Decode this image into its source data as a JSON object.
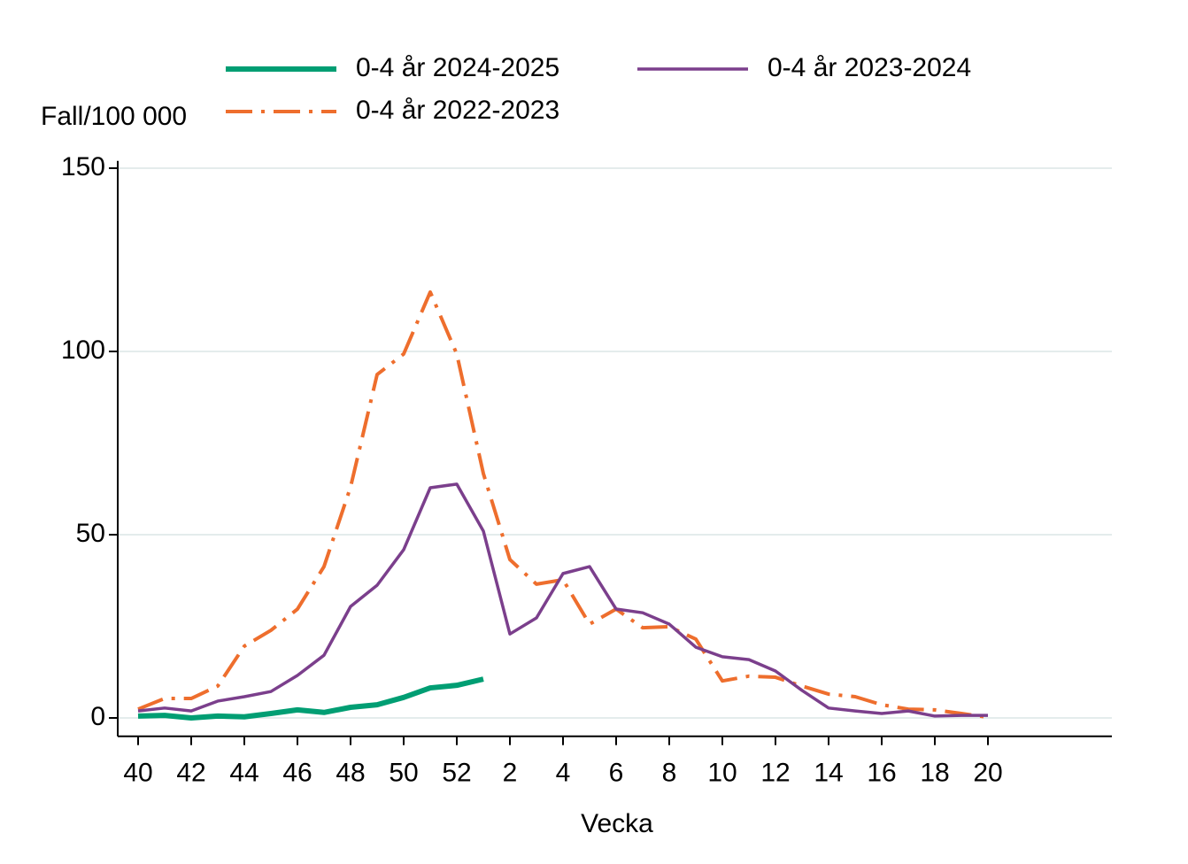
{
  "chart_data": {
    "type": "line",
    "ylabel": "Fall/100 000",
    "xlabel": "Vecka",
    "categories": [
      "40",
      null,
      "42",
      null,
      "44",
      null,
      "46",
      null,
      "48",
      null,
      "50",
      null,
      "52",
      null,
      "2",
      null,
      "4",
      null,
      "6",
      null,
      "8",
      null,
      "10",
      null,
      "12",
      null,
      "14",
      null,
      "16",
      null,
      "18",
      null,
      "20"
    ],
    "series": [
      {
        "name": "0-4 år 2024-2025",
        "color": "#009e73",
        "width": 6,
        "dash": "solid",
        "values": [
          0.5,
          0.7,
          0,
          0.5,
          0.3,
          1.2,
          2.2,
          1.5,
          2.9,
          3.6,
          5.6,
          8.2,
          8.9,
          10.6,
          null,
          null,
          null,
          null,
          null,
          null,
          null,
          null,
          null,
          null,
          null,
          null,
          null,
          null,
          null,
          null,
          null,
          null,
          null
        ]
      },
      {
        "name": "0-4 år 2023-2024",
        "color": "#7b3f8c",
        "width": 3.5,
        "dash": "solid",
        "values": [
          1.9,
          2.7,
          1.9,
          4.6,
          5.8,
          7.2,
          11.6,
          17.1,
          30.4,
          36.2,
          45.9,
          62.8,
          63.8,
          51.0,
          22.9,
          27.3,
          39.4,
          41.3,
          29.7,
          28.7,
          25.6,
          19.3,
          16.7,
          15.9,
          12.8,
          7.5,
          2.7,
          1.9,
          1.2,
          1.9,
          0.5,
          0.7,
          0.7
        ]
      },
      {
        "name": "0-4 år 2022-2023",
        "color": "#ee6e2d",
        "width": 4,
        "dash": "dashdot",
        "values": [
          2.4,
          5.3,
          5.3,
          8.7,
          19.6,
          23.9,
          29.7,
          41.3,
          63.0,
          93.7,
          99.3,
          116.2,
          99.3,
          66.7,
          43.2,
          36.5,
          37.7,
          25.6,
          29.7,
          24.6,
          24.9,
          21.5,
          10.1,
          11.4,
          11.1,
          8.7,
          6.5,
          5.8,
          3.6,
          2.4,
          2.2,
          1.2,
          0.2
        ]
      }
    ],
    "ylim": [
      -5,
      152
    ],
    "yticks": [
      0,
      50,
      100,
      150
    ],
    "grid": true,
    "legend": "top"
  }
}
